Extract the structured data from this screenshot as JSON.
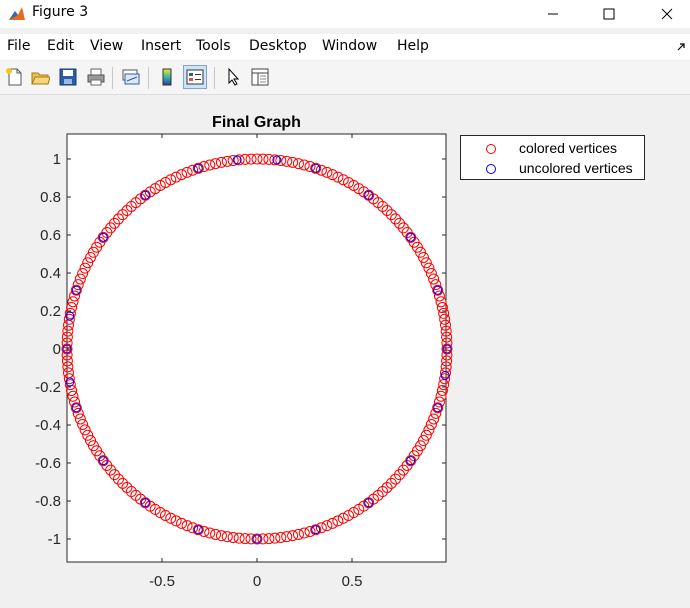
{
  "window": {
    "title": "Figure 3",
    "icon": "matlab-logo-icon",
    "controls": [
      "minimize-icon",
      "maximize-icon",
      "close-icon"
    ]
  },
  "menubar": {
    "items": [
      "File",
      "Edit",
      "View",
      "Insert",
      "Tools",
      "Desktop",
      "Window",
      "Help"
    ]
  },
  "toolbar": {
    "items": [
      {
        "icon": "new-figure-icon"
      },
      {
        "icon": "open-file-icon"
      },
      {
        "icon": "save-icon"
      },
      {
        "icon": "print-icon"
      },
      {
        "icon": "link-plot-icon"
      },
      {
        "icon": "insert-colorbar-icon"
      },
      {
        "icon": "insert-legend-icon",
        "active": true
      },
      {
        "icon": "edit-plot-arrow-icon"
      },
      {
        "icon": "property-inspector-icon"
      }
    ]
  },
  "colors": {
    "colored": "#ff0000",
    "uncolored": "#0000ff"
  },
  "chart_data": {
    "type": "scatter",
    "title": "Final Graph",
    "xlabel": "",
    "ylabel": "",
    "xlim": [
      -1,
      1
    ],
    "ylim": [
      -1.1,
      1.1
    ],
    "xticks": [
      -0.5,
      0,
      0.5
    ],
    "xtick_labels": [
      "-0.5",
      "0",
      "0.5"
    ],
    "yticks": [
      1,
      0.8,
      0.6,
      0.4,
      0.2,
      0,
      -0.2,
      -0.4,
      -0.6,
      -0.8,
      -1
    ],
    "ytick_labels": [
      "1",
      "0.8",
      "0.6",
      "0.4",
      "0.2",
      "0",
      "-0.2",
      "-0.4",
      "-0.6",
      "-0.8",
      "-1"
    ],
    "grid": false,
    "legend_position": "northeast-outside",
    "marker": "circle-open",
    "series": [
      {
        "name": "colored vertices",
        "color": "#ff0000",
        "points_description": "unit circle",
        "point_count": 200
      },
      {
        "name": "uncolored vertices",
        "color": "#0000ff",
        "angles_deg": [
          0,
          18,
          36,
          54,
          72,
          84,
          96,
          108,
          126,
          144,
          162,
          170,
          180,
          190,
          198,
          216,
          234,
          252,
          270,
          288,
          306,
          324,
          342,
          352
        ]
      }
    ]
  }
}
